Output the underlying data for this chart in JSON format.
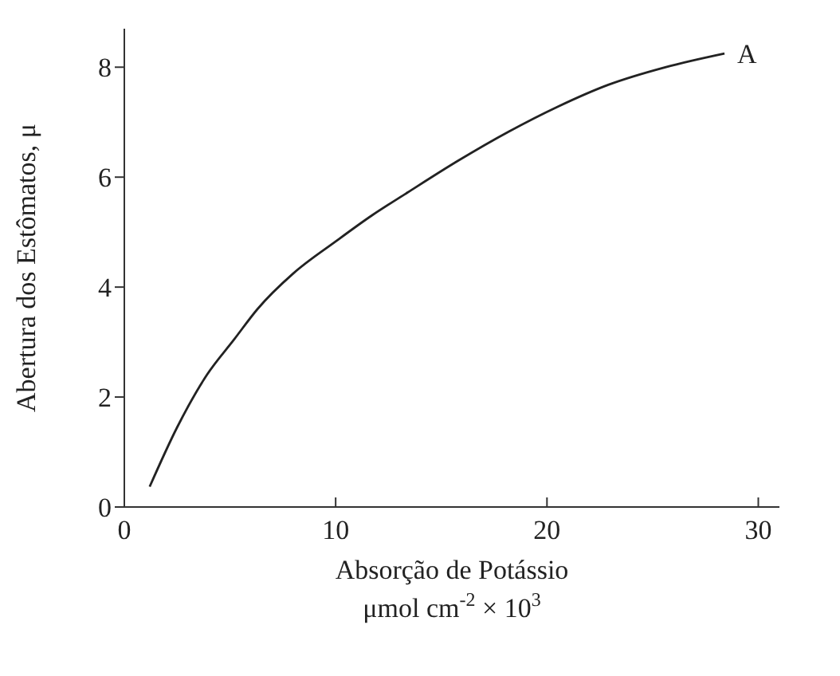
{
  "chart_data": {
    "type": "line",
    "xlabel": "Absorção de Potássio\nμmol cm$^{-2}$ × 10$^{3}$",
    "ylabel": "Abertura dos Estômatos, μ",
    "x": [
      1.2,
      2.5,
      3.9,
      5.2,
      6.3,
      8,
      10,
      11.7,
      13.4,
      15.8,
      18.2,
      20.5,
      22.9,
      25.6,
      28.4
    ],
    "series": [
      {
        "color": "#222222",
        "values": [
          0.37,
          1.45,
          2.4,
          3.05,
          3.6,
          4.25,
          4.83,
          5.3,
          5.72,
          6.3,
          6.83,
          7.28,
          7.68,
          8.0,
          8.25
        ]
      }
    ],
    "xlim": [
      0,
      31
    ],
    "xticks": [
      0,
      10,
      20,
      30
    ],
    "ylim": [
      0,
      8.7
    ],
    "yticks": [
      0,
      2,
      4,
      6,
      8
    ],
    "annotations": [
      {
        "text": "A",
        "x": 28.4,
        "y": 8.25
      }
    ],
    "grid": false,
    "legend": false,
    "marker": "none",
    "line_style": "solid"
  }
}
